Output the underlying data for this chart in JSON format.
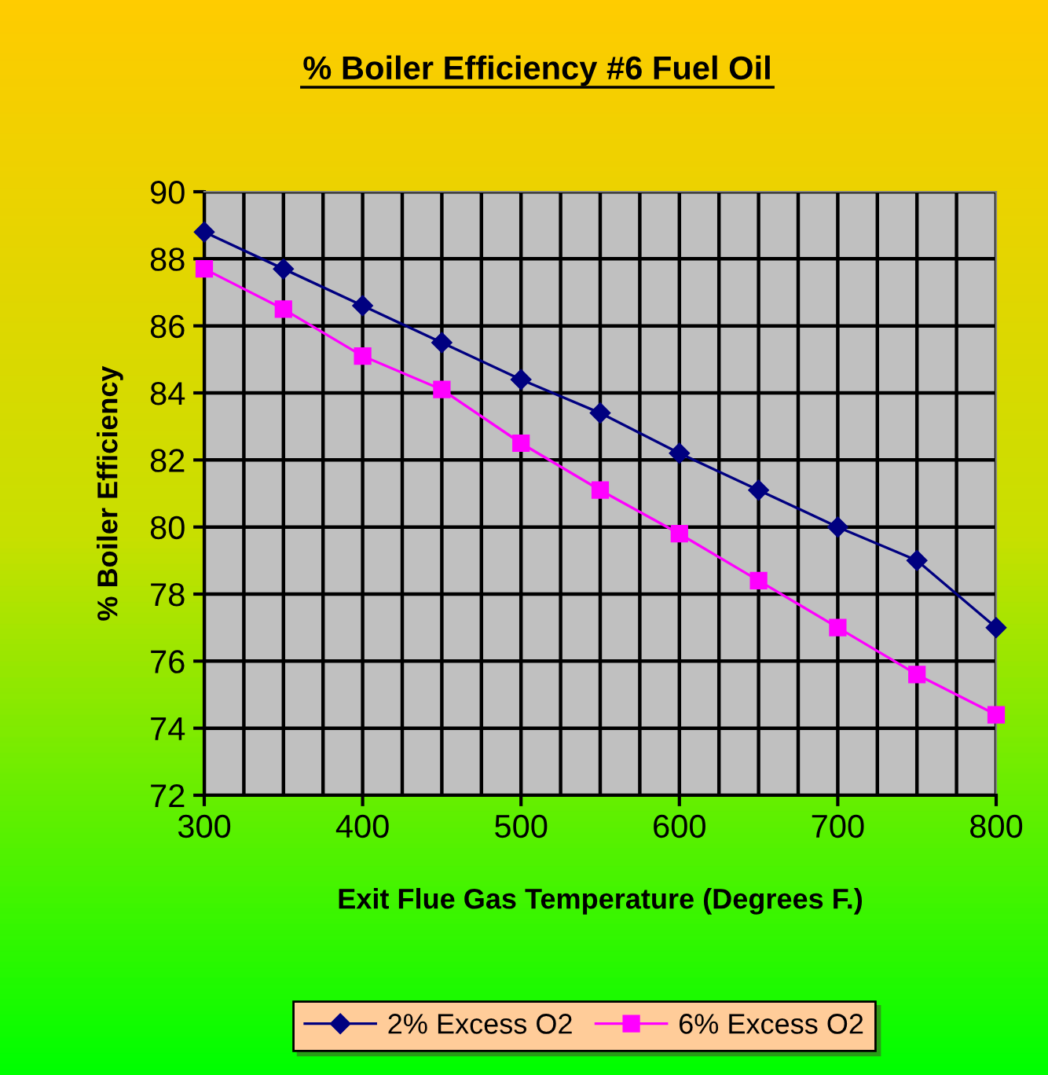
{
  "chart_data": {
    "type": "line",
    "title": "% Boiler Efficiency #6 Fuel Oil",
    "xlabel": "Exit Flue Gas Temperature (Degrees F.)",
    "ylabel": "% Boiler Efficiency",
    "x": [
      300,
      350,
      400,
      450,
      500,
      550,
      600,
      650,
      700,
      750,
      800
    ],
    "series": [
      {
        "name": "2% Excess O2",
        "color": "#000080",
        "marker": "diamond",
        "values": [
          88.8,
          87.7,
          86.6,
          85.5,
          84.4,
          83.4,
          82.2,
          81.1,
          80.0,
          79.0,
          77.0
        ]
      },
      {
        "name": "6% Excess O2",
        "color": "#ff00ff",
        "marker": "square",
        "values": [
          87.7,
          86.5,
          85.1,
          84.1,
          82.5,
          81.1,
          79.8,
          78.4,
          77.0,
          75.6,
          74.4
        ]
      }
    ],
    "xlim": [
      300,
      800
    ],
    "ylim": [
      72,
      90
    ],
    "xticks": [
      300,
      {
        "value": 325,
        "label": null
      },
      {
        "value": 350,
        "label": null
      },
      {
        "value": 375,
        "label": null
      },
      400,
      {
        "value": 425,
        "label": null
      },
      {
        "value": 450,
        "label": null
      },
      {
        "value": 475,
        "label": null
      },
      500,
      {
        "value": 525,
        "label": null
      },
      {
        "value": 550,
        "label": null
      },
      {
        "value": 575,
        "label": null
      },
      600,
      {
        "value": 625,
        "label": null
      },
      {
        "value": 650,
        "label": null
      },
      {
        "value": 675,
        "label": null
      },
      700,
      {
        "value": 725,
        "label": null
      },
      {
        "value": 750,
        "label": null
      },
      {
        "value": 775,
        "label": null
      },
      800
    ],
    "yticks": [
      72,
      74,
      76,
      78,
      80,
      82,
      84,
      86,
      88,
      90
    ],
    "grid": true,
    "legend": "bottom",
    "line_style": "solid"
  }
}
